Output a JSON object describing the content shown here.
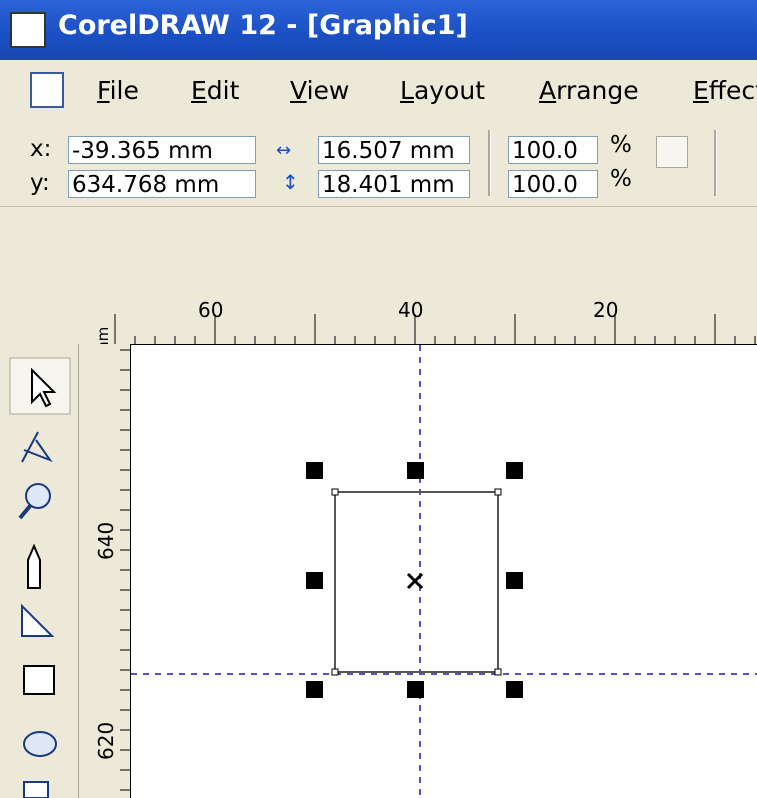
{
  "title": "CorelDRAW 12 - [Graphic1]",
  "menu": [
    "File",
    "Edit",
    "View",
    "Layout",
    "Arrange",
    "Effects"
  ],
  "property_bar": {
    "x_label": "x:",
    "x_value": "-39.365 mm",
    "y_label": "y:",
    "y_value": "634.768 mm",
    "width_value": "16.507 mm",
    "height_value": "18.401 mm",
    "scale_x": "100.0",
    "scale_x_unit": "%",
    "scale_y": "100.0",
    "scale_y_unit": "%"
  },
  "ruler": {
    "unit": "mm",
    "top_labels": [
      "60",
      "40",
      "20"
    ],
    "left_labels": [
      "640",
      "620"
    ]
  }
}
